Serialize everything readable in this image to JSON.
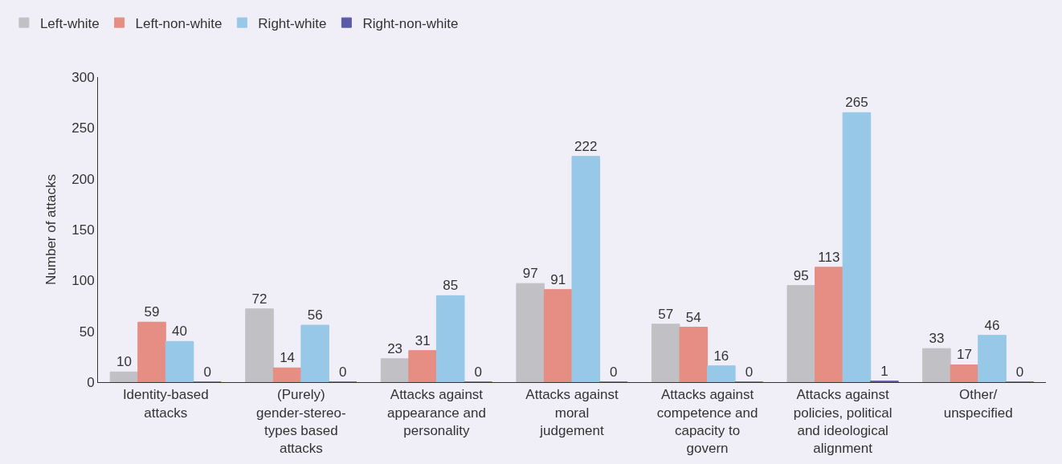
{
  "chart_data": {
    "type": "bar",
    "ylabel": "Number of attacks",
    "categories": [
      "Identity-based\nattacks",
      "(Purely)\ngender-stereo-\ntypes based\nattacks",
      "Attacks against\nappearance and\npersonality",
      "Attacks against\nmoral\njudgement",
      "Attacks against\ncompetence and\ncapacity to\ngovern",
      "Attacks against\npolicies, political\nand ideological\nalignment",
      "Other/\nunspecified"
    ],
    "series": [
      {
        "name": "Left-white",
        "color": "#c1c1c5",
        "values": [
          10,
          72,
          23,
          97,
          57,
          95,
          33
        ]
      },
      {
        "name": "Left-non-white",
        "color": "#e68e83",
        "values": [
          59,
          14,
          31,
          91,
          54,
          113,
          17
        ]
      },
      {
        "name": "Right-white",
        "color": "#97c8e7",
        "values": [
          40,
          56,
          85,
          222,
          16,
          265,
          46
        ]
      },
      {
        "name": "Right-non-white",
        "color": "#5b5aa8",
        "values": [
          0,
          0,
          0,
          0,
          0,
          1,
          0
        ]
      }
    ],
    "ylim": [
      0,
      300
    ],
    "yticks": [
      0,
      50,
      100,
      150,
      200,
      250,
      300
    ],
    "data_labels": true,
    "grid": false,
    "legend": "top left"
  }
}
